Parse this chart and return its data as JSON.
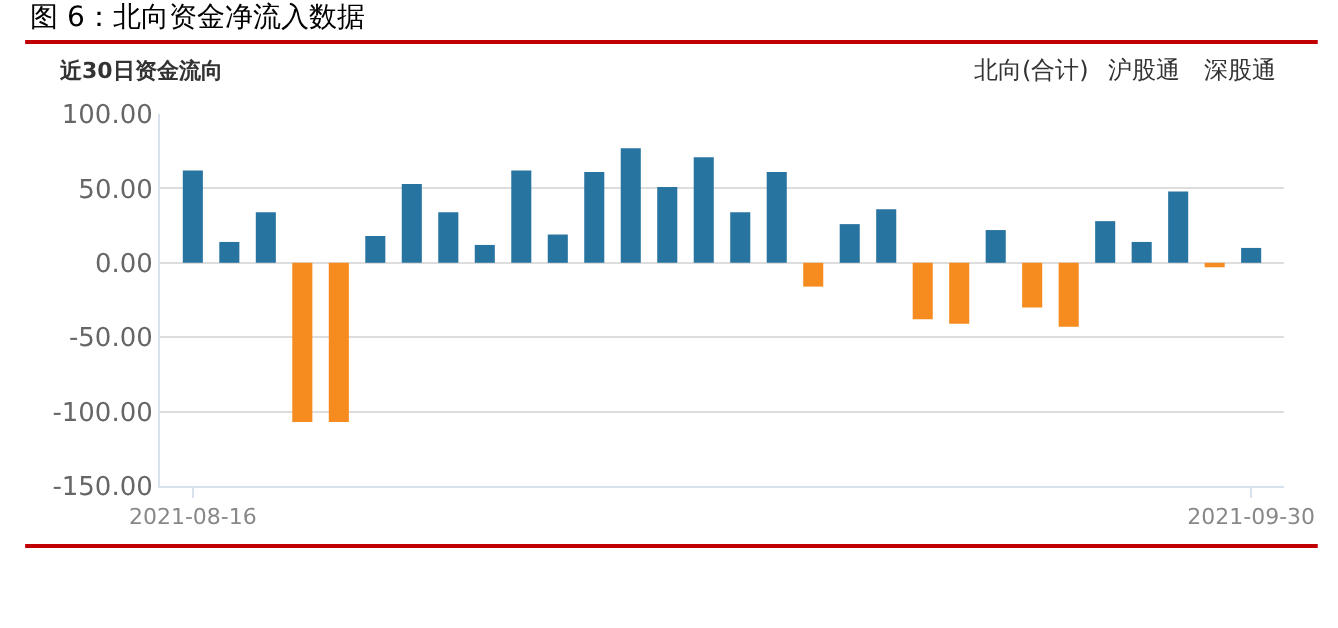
{
  "chart_data": {
    "type": "bar",
    "title": "图 6：北向资金净流入数据",
    "subtitle": "近30日资金流向",
    "categories": [
      "2021-08-16",
      null,
      null,
      null,
      null,
      null,
      null,
      null,
      null,
      null,
      null,
      null,
      null,
      null,
      null,
      null,
      null,
      null,
      null,
      null,
      null,
      null,
      null,
      null,
      null,
      null,
      null,
      null,
      null,
      "2021-09-30"
    ],
    "values": [
      62,
      14,
      34,
      -107,
      -107,
      18,
      53,
      34,
      12,
      62,
      19,
      61,
      77,
      51,
      71,
      34,
      61,
      -16,
      26,
      36,
      -38,
      -41,
      22,
      -30,
      -43,
      28,
      14,
      48,
      -3,
      10
    ],
    "colors": [
      "#2874a0",
      "#2874a0",
      "#2874a0",
      "#f68b1f",
      "#f68b1f",
      "#2874a0",
      "#2874a0",
      "#2874a0",
      "#2874a0",
      "#2874a0",
      "#2874a0",
      "#2874a0",
      "#2874a0",
      "#2874a0",
      "#2874a0",
      "#2874a0",
      "#2874a0",
      "#f68b1f",
      "#2874a0",
      "#2874a0",
      "#f68b1f",
      "#f68b1f",
      "#2874a0",
      "#f68b1f",
      "#f68b1f",
      "#2874a0",
      "#2874a0",
      "#2874a0",
      "#f68b1f",
      "#2874a0"
    ],
    "ylim": [
      -150,
      100
    ],
    "yticks": [
      {
        "value": -150,
        "label": "-150.00"
      },
      {
        "value": -100,
        "label": "-100.00"
      },
      {
        "value": -50,
        "label": "-50.00"
      },
      {
        "value": 0,
        "label": "0.00"
      },
      {
        "value": 50,
        "label": "50.00"
      },
      {
        "value": 100,
        "label": "100.00"
      }
    ],
    "grid": "y",
    "annotations": [
      "北向(合计)",
      "沪股通",
      "深股通"
    ]
  }
}
